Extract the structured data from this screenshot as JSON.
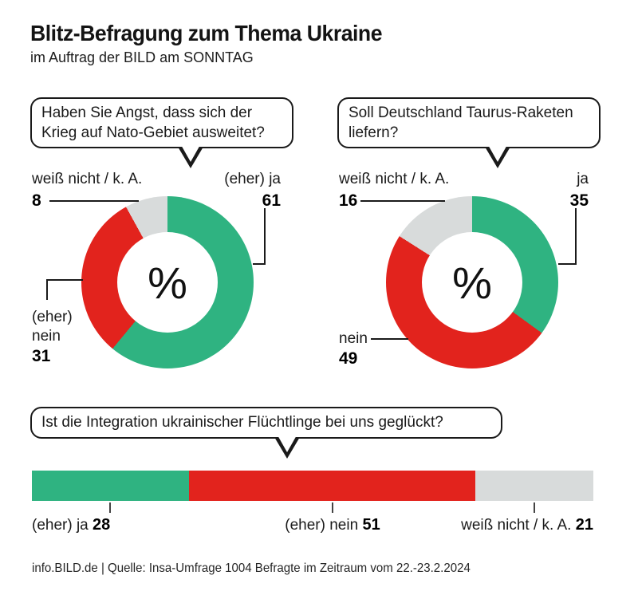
{
  "header": {
    "title": "Blitz-Befragung zum Thema Ukraine",
    "subtitle": "im Auftrag der BILD am SONNTAG"
  },
  "colors": {
    "yes_green": "#2fb381",
    "no_red": "#e2231d",
    "unknown_gray": "#d8dbdb",
    "ink": "#1a1a1a"
  },
  "chart_data": [
    {
      "type": "donut",
      "question": "Haben Sie Angst, dass sich der Krieg auf Nato-Gebiet ausweitet?",
      "center_label": "%",
      "unit": "%",
      "segments": [
        {
          "label": "(eher) ja",
          "value": 61,
          "color": "#2fb381"
        },
        {
          "label": "(eher) nein",
          "value": 31,
          "color": "#e2231d"
        },
        {
          "label": "weiß nicht / k. A.",
          "value": 8,
          "color": "#d8dbdb"
        }
      ]
    },
    {
      "type": "donut",
      "question": "Soll Deutschland Taurus-Raketen liefern?",
      "center_label": "%",
      "unit": "%",
      "segments": [
        {
          "label": "ja",
          "value": 35,
          "color": "#2fb381"
        },
        {
          "label": "nein",
          "value": 49,
          "color": "#e2231d"
        },
        {
          "label": "weiß nicht / k. A.",
          "value": 16,
          "color": "#d8dbdb"
        }
      ]
    },
    {
      "type": "stacked_bar",
      "question": "Ist die Integration ukrainischer Flüchtlinge bei uns geglückt?",
      "unit": "%",
      "segments": [
        {
          "label": "(eher) ja",
          "value": 28,
          "color": "#2fb381"
        },
        {
          "label": "(eher) nein",
          "value": 51,
          "color": "#e2231d"
        },
        {
          "label": "weiß nicht / k. A.",
          "value": 21,
          "color": "#d8dbdb"
        }
      ]
    }
  ],
  "footer": {
    "source": "info.BILD.de | Quelle: Insa-Umfrage 1004 Befragte im Zeitraum vom 22.-23.2.2024"
  }
}
